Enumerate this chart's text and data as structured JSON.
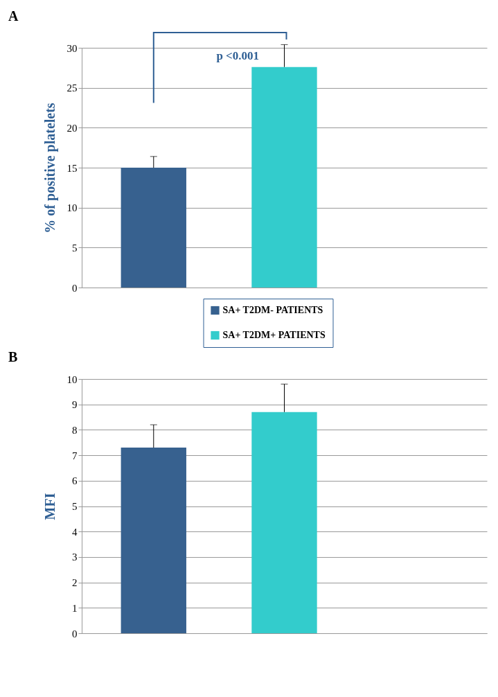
{
  "chart_data": [
    {
      "type": "bar",
      "title": "A",
      "ylabel": "% of positive platelets",
      "categories": [
        null,
        null,
        null
      ],
      "series": [
        {
          "name": "SA+ T2DM- PATIENTS",
          "color": "#37618f",
          "values": [
            15.0,
            null,
            null
          ],
          "errors": [
            [
              15.0,
              16.4
            ],
            null,
            null
          ]
        },
        {
          "name": "SA+ T2DM+ PATIENTS",
          "color": "#33cccc",
          "values": [
            null,
            27.6,
            null
          ],
          "errors": [
            null,
            [
              27.6,
              30.4
            ],
            null
          ]
        }
      ],
      "ylim": [
        0,
        30
      ],
      "yticks": [
        0,
        5,
        10,
        15,
        20,
        25,
        30
      ],
      "grid": "y",
      "legend": "bottom",
      "tick_labels": "y",
      "annotations": [
        "p <0.001"
      ]
    },
    {
      "type": "bar",
      "title": "B",
      "ylabel": "MFI",
      "categories": [
        null,
        null,
        null
      ],
      "series": [
        {
          "color": "#37618f",
          "values": [
            7.3,
            null,
            null
          ],
          "errors": [
            [
              7.3,
              8.2
            ],
            null,
            null
          ]
        },
        {
          "color": "#33cccc",
          "values": [
            null,
            8.7,
            null
          ],
          "errors": [
            null,
            [
              8.7,
              9.8
            ],
            null
          ]
        }
      ],
      "ylim": [
        0,
        10
      ],
      "yticks": [
        0,
        1,
        2,
        3,
        4,
        5,
        6,
        7,
        8,
        9,
        10
      ],
      "grid": "y",
      "tick_labels": "y"
    }
  ]
}
